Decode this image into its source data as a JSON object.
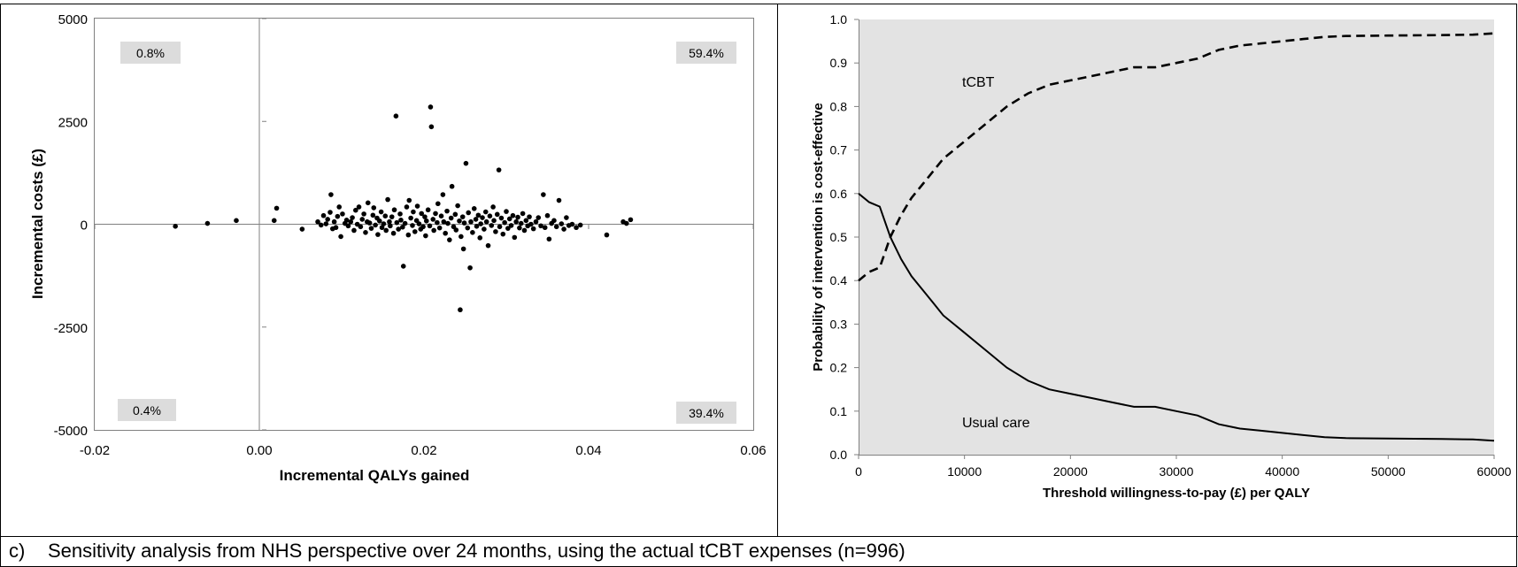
{
  "caption": {
    "label": "c)",
    "text": "Sensitivity analysis from NHS perspective over 24 months, using the actual tCBT expenses (n=996)"
  },
  "chart_data": [
    {
      "type": "scatter",
      "title": "",
      "xlabel": "Incremental QALYs gained",
      "ylabel": "Incremental costs (£)",
      "xlim": [
        -0.02,
        0.06
      ],
      "ylim": [
        -5000,
        5000
      ],
      "x_ticks": [
        "-0.02",
        "0.00",
        "0.02",
        "0.04",
        "0.06"
      ],
      "y_ticks": [
        "5000",
        "2500",
        "0",
        "-2500",
        "-5000"
      ],
      "grid": false,
      "quadrant_labels": {
        "top_left": "0.8%",
        "top_right": "59.4%",
        "bottom_left": "0.4%",
        "bottom_right": "39.4%"
      },
      "points": [
        [
          -0.0102,
          -50
        ],
        [
          -0.0063,
          20
        ],
        [
          -0.0028,
          90
        ],
        [
          0.0018,
          90
        ],
        [
          0.0021,
          390
        ],
        [
          0.0052,
          -120
        ],
        [
          0.0071,
          60
        ],
        [
          0.0075,
          -20
        ],
        [
          0.0078,
          210
        ],
        [
          0.0081,
          10
        ],
        [
          0.0083,
          120
        ],
        [
          0.0086,
          290
        ],
        [
          0.0087,
          720
        ],
        [
          0.0089,
          -110
        ],
        [
          0.0091,
          60
        ],
        [
          0.0093,
          -80
        ],
        [
          0.0095,
          190
        ],
        [
          0.0097,
          420
        ],
        [
          0.0099,
          -300
        ],
        [
          0.0101,
          250
        ],
        [
          0.0104,
          20
        ],
        [
          0.0106,
          100
        ],
        [
          0.0108,
          -40
        ],
        [
          0.0111,
          60
        ],
        [
          0.0113,
          160
        ],
        [
          0.0115,
          -150
        ],
        [
          0.0117,
          340
        ],
        [
          0.0119,
          0
        ],
        [
          0.0121,
          420
        ],
        [
          0.0123,
          -60
        ],
        [
          0.0125,
          120
        ],
        [
          0.0127,
          250
        ],
        [
          0.0129,
          -200
        ],
        [
          0.0131,
          60
        ],
        [
          0.0132,
          520
        ],
        [
          0.0134,
          30
        ],
        [
          0.0136,
          -100
        ],
        [
          0.0138,
          220
        ],
        [
          0.0139,
          400
        ],
        [
          0.0141,
          -20
        ],
        [
          0.0143,
          150
        ],
        [
          0.0144,
          -250
        ],
        [
          0.0146,
          80
        ],
        [
          0.0148,
          300
        ],
        [
          0.0149,
          -80
        ],
        [
          0.0151,
          10
        ],
        [
          0.0153,
          200
        ],
        [
          0.0154,
          -150
        ],
        [
          0.0156,
          600
        ],
        [
          0.0158,
          60
        ],
        [
          0.0159,
          -40
        ],
        [
          0.0161,
          180
        ],
        [
          0.0163,
          -220
        ],
        [
          0.0164,
          350
        ],
        [
          0.0166,
          2630
        ],
        [
          0.0167,
          40
        ],
        [
          0.0169,
          -120
        ],
        [
          0.0171,
          250
        ],
        [
          0.0172,
          100
        ],
        [
          0.0174,
          -70
        ],
        [
          0.0175,
          -1020
        ],
        [
          0.0177,
          20
        ],
        [
          0.0179,
          420
        ],
        [
          0.0181,
          -260
        ],
        [
          0.0182,
          580
        ],
        [
          0.0184,
          150
        ],
        [
          0.0186,
          -30
        ],
        [
          0.0187,
          300
        ],
        [
          0.0189,
          -180
        ],
        [
          0.0191,
          90
        ],
        [
          0.0192,
          440
        ],
        [
          0.0194,
          10
        ],
        [
          0.0196,
          -120
        ],
        [
          0.0197,
          260
        ],
        [
          0.0199,
          -60
        ],
        [
          0.0201,
          180
        ],
        [
          0.0202,
          -280
        ],
        [
          0.0203,
          80
        ],
        [
          0.0205,
          350
        ],
        [
          0.0207,
          -40
        ],
        [
          0.0208,
          2850
        ],
        [
          0.0209,
          2370
        ],
        [
          0.0211,
          120
        ],
        [
          0.0212,
          -150
        ],
        [
          0.0214,
          260
        ],
        [
          0.0216,
          40
        ],
        [
          0.0217,
          500
        ],
        [
          0.0219,
          -90
        ],
        [
          0.0221,
          200
        ],
        [
          0.0223,
          720
        ],
        [
          0.0224,
          60
        ],
        [
          0.0226,
          -220
        ],
        [
          0.0228,
          320
        ],
        [
          0.0229,
          20
        ],
        [
          0.0231,
          -380
        ],
        [
          0.0233,
          150
        ],
        [
          0.0234,
          920
        ],
        [
          0.0236,
          -60
        ],
        [
          0.0238,
          240
        ],
        [
          0.0239,
          -140
        ],
        [
          0.0241,
          450
        ],
        [
          0.0243,
          80
        ],
        [
          0.0244,
          -2080
        ],
        [
          0.0245,
          -300
        ],
        [
          0.0247,
          180
        ],
        [
          0.0248,
          -600
        ],
        [
          0.0249,
          30
        ],
        [
          0.0251,
          1480
        ],
        [
          0.0253,
          -90
        ],
        [
          0.0254,
          280
        ],
        [
          0.0256,
          -1060
        ],
        [
          0.0257,
          60
        ],
        [
          0.0259,
          -200
        ],
        [
          0.0261,
          380
        ],
        [
          0.0263,
          120
        ],
        [
          0.0264,
          -50
        ],
        [
          0.0266,
          220
        ],
        [
          0.0268,
          -330
        ],
        [
          0.0269,
          10
        ],
        [
          0.0271,
          160
        ],
        [
          0.0273,
          -120
        ],
        [
          0.0275,
          300
        ],
        [
          0.0276,
          60
        ],
        [
          0.0278,
          -520
        ],
        [
          0.028,
          200
        ],
        [
          0.0282,
          -30
        ],
        [
          0.0284,
          420
        ],
        [
          0.0285,
          90
        ],
        [
          0.0287,
          -180
        ],
        [
          0.0289,
          240
        ],
        [
          0.0291,
          1320
        ],
        [
          0.0292,
          -60
        ],
        [
          0.0294,
          150
        ],
        [
          0.0296,
          -240
        ],
        [
          0.0298,
          40
        ],
        [
          0.03,
          310
        ],
        [
          0.0302,
          -100
        ],
        [
          0.0304,
          130
        ],
        [
          0.0306,
          -30
        ],
        [
          0.0308,
          210
        ],
        [
          0.031,
          -320
        ],
        [
          0.0312,
          60
        ],
        [
          0.0314,
          170
        ],
        [
          0.0316,
          -90
        ],
        [
          0.0318,
          20
        ],
        [
          0.032,
          260
        ],
        [
          0.0322,
          -150
        ],
        [
          0.0324,
          90
        ],
        [
          0.0326,
          -40
        ],
        [
          0.0328,
          180
        ],
        [
          0.033,
          0
        ],
        [
          0.0333,
          -110
        ],
        [
          0.0336,
          60
        ],
        [
          0.0339,
          160
        ],
        [
          0.0342,
          -40
        ],
        [
          0.0345,
          720
        ],
        [
          0.0347,
          -80
        ],
        [
          0.035,
          210
        ],
        [
          0.0352,
          -360
        ],
        [
          0.0355,
          20
        ],
        [
          0.0358,
          90
        ],
        [
          0.0361,
          -60
        ],
        [
          0.0364,
          580
        ],
        [
          0.0367,
          10
        ],
        [
          0.037,
          -120
        ],
        [
          0.0373,
          160
        ],
        [
          0.0376,
          -30
        ],
        [
          0.038,
          0
        ],
        [
          0.0385,
          -80
        ],
        [
          0.039,
          -20
        ],
        [
          0.0422,
          -260
        ],
        [
          0.0442,
          60
        ],
        [
          0.0446,
          20
        ],
        [
          0.0451,
          110
        ]
      ]
    },
    {
      "type": "line",
      "title": "",
      "xlabel": "Threshold willingness-to-pay (£) per QALY",
      "ylabel": "Probability of intervention is cost-effective",
      "xlim": [
        0,
        60000
      ],
      "ylim": [
        0,
        1.0
      ],
      "x_ticks": [
        "0",
        "10000",
        "20000",
        "30000",
        "40000",
        "50000",
        "60000"
      ],
      "y_ticks": [
        "0.0",
        "0.1",
        "0.2",
        "0.3",
        "0.4",
        "0.5",
        "0.6",
        "0.7",
        "0.8",
        "0.9",
        "1.0"
      ],
      "background": "#e3e3e3",
      "grid": false,
      "series": [
        {
          "name": "tCBT",
          "style": "dashed",
          "x": [
            0,
            1000,
            2000,
            3000,
            4000,
            5000,
            6000,
            7000,
            8000,
            9000,
            10000,
            12000,
            14000,
            16000,
            18000,
            20000,
            22000,
            24000,
            26000,
            28000,
            30000,
            32000,
            34000,
            36000,
            38000,
            40000,
            42000,
            44000,
            46000,
            50000,
            55000,
            58000,
            60000
          ],
          "values": [
            0.4,
            0.42,
            0.43,
            0.5,
            0.55,
            0.59,
            0.62,
            0.65,
            0.68,
            0.7,
            0.72,
            0.76,
            0.8,
            0.83,
            0.85,
            0.86,
            0.87,
            0.88,
            0.89,
            0.89,
            0.9,
            0.91,
            0.93,
            0.94,
            0.945,
            0.95,
            0.955,
            0.96,
            0.962,
            0.963,
            0.964,
            0.965,
            0.968
          ]
        },
        {
          "name": "Usual care",
          "style": "solid",
          "x": [
            0,
            1000,
            2000,
            3000,
            4000,
            5000,
            6000,
            7000,
            8000,
            9000,
            10000,
            12000,
            14000,
            16000,
            18000,
            20000,
            22000,
            24000,
            26000,
            28000,
            30000,
            32000,
            34000,
            36000,
            38000,
            40000,
            42000,
            44000,
            46000,
            50000,
            55000,
            58000,
            60000
          ],
          "values": [
            0.6,
            0.58,
            0.57,
            0.5,
            0.45,
            0.41,
            0.38,
            0.35,
            0.32,
            0.3,
            0.28,
            0.24,
            0.2,
            0.17,
            0.15,
            0.14,
            0.13,
            0.12,
            0.11,
            0.11,
            0.1,
            0.09,
            0.07,
            0.06,
            0.055,
            0.05,
            0.045,
            0.04,
            0.038,
            0.037,
            0.036,
            0.035,
            0.032
          ]
        }
      ]
    }
  ]
}
